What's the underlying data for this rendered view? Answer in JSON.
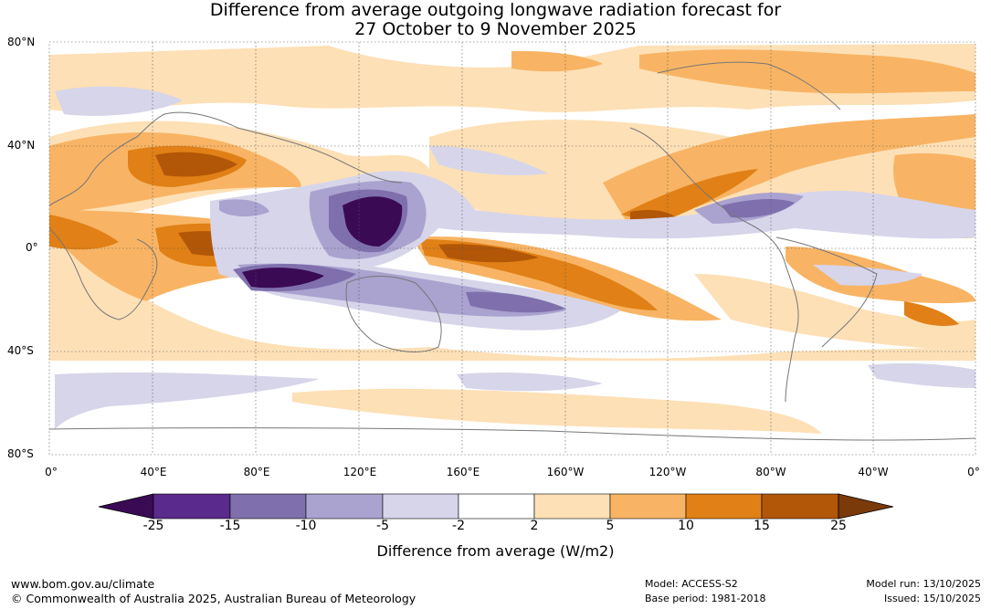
{
  "title": {
    "line1": "Difference from average outgoing longwave radiation forecast for",
    "line2": "27 October to 9 November 2025"
  },
  "latitude_labels": [
    "80°N",
    "40°N",
    "0°",
    "40°S",
    "80°S"
  ],
  "longitude_labels": [
    "0°",
    "40°E",
    "80°E",
    "120°E",
    "160°E",
    "160°W",
    "120°W",
    "80°W",
    "40°W",
    "0°"
  ],
  "colorbar": {
    "title": "Difference from average (W/m2)",
    "tick_labels": [
      "-25",
      "-15",
      "-10",
      "-5",
      "-2",
      "2",
      "5",
      "10",
      "15",
      "25"
    ],
    "colors": [
      "#3b0a55",
      "#5a2a8c",
      "#7f70ad",
      "#aaa2cf",
      "#d6d5ea",
      "#ffffff",
      "#fde0b6",
      "#f8b464",
      "#e08016",
      "#b25607",
      "#7a3a0a"
    ]
  },
  "footer": {
    "website": "www.bom.gov.au/climate",
    "copyright": "© Commonwealth of Australia 2025, Australian Bureau of Meteorology",
    "model": "Model: ACCESS-S2",
    "base_period": "Base period: 1981-2018",
    "model_run": "Model run: 13/10/2025",
    "issued": "Issued: 15/10/2025"
  }
}
